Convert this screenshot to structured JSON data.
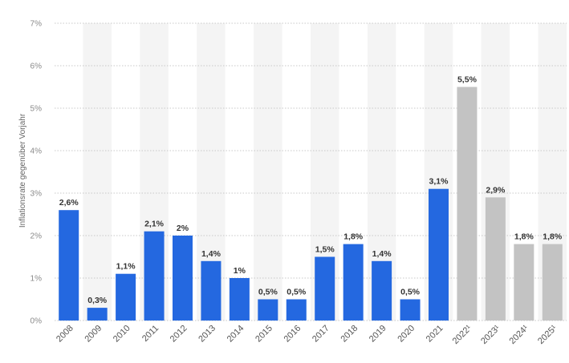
{
  "chart_data": {
    "type": "bar",
    "title": "",
    "xlabel": "",
    "ylabel": "Inflationsrate gegenüber Vorjahr",
    "ylim": [
      0,
      7
    ],
    "yticks": [
      "0%",
      "1%",
      "2%",
      "3%",
      "4%",
      "5%",
      "6%",
      "7%"
    ],
    "grid": true,
    "categories": [
      "2008",
      "2009",
      "2010",
      "2011",
      "2012",
      "2013",
      "2014",
      "2015",
      "2016",
      "2017",
      "2018",
      "2019",
      "2020",
      "2021",
      "2022¹",
      "2023¹",
      "2024¹",
      "2025¹"
    ],
    "values": [
      2.6,
      0.3,
      1.1,
      2.1,
      2.0,
      1.4,
      1.0,
      0.5,
      0.5,
      1.5,
      1.8,
      1.4,
      0.5,
      3.1,
      5.5,
      2.9,
      1.8,
      1.8
    ],
    "value_labels": [
      "2,6%",
      "0,3%",
      "1,1%",
      "2,1%",
      "2%",
      "1,4%",
      "1%",
      "0,5%",
      "0,5%",
      "1,5%",
      "1,8%",
      "1,4%",
      "0,5%",
      "3,1%",
      "5,5%",
      "2,9%",
      "1,8%",
      "1,8%"
    ],
    "forecast": [
      false,
      false,
      false,
      false,
      false,
      false,
      false,
      false,
      false,
      false,
      false,
      false,
      false,
      false,
      true,
      true,
      true,
      true
    ],
    "colors": {
      "actual": "#2468e0",
      "forecast": "#c3c3c3",
      "band": "#f4f4f4",
      "grid": "#c8c8c8"
    }
  }
}
